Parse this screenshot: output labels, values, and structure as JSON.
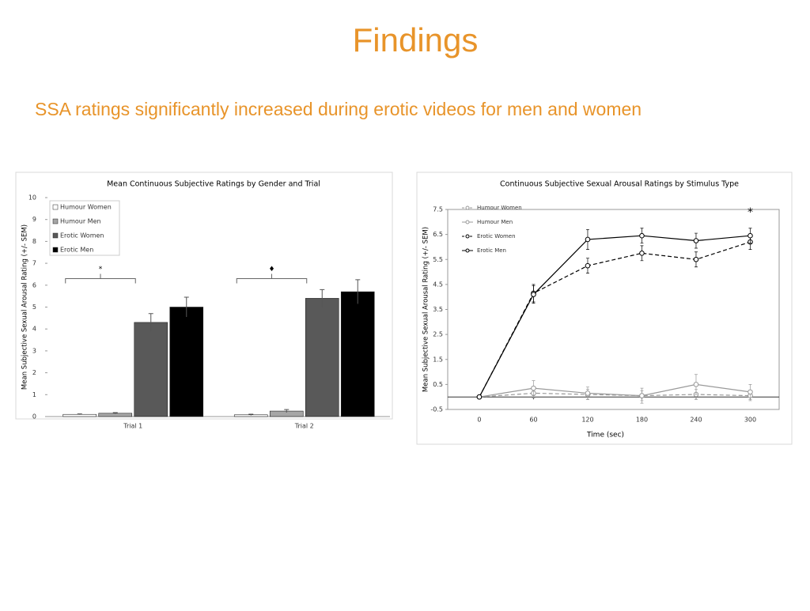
{
  "title": "Findings",
  "subtitle": "SSA ratings significantly increased during erotic videos for men and women",
  "chart_data": [
    {
      "type": "bar",
      "title": "Mean Continuous Subjective Ratings by Gender and Trial",
      "y_label": "Mean Subjective Sexual Arousal Rating (+/- SEM)",
      "categories": [
        "Trial 1",
        "Trial 2"
      ],
      "series": [
        {
          "name": "Humour Women",
          "color": "#ffffff",
          "values": [
            0.1,
            0.08
          ],
          "errors": [
            0.02,
            0.03
          ]
        },
        {
          "name": "Humour Men",
          "color": "#a6a6a6",
          "values": [
            0.15,
            0.25
          ],
          "errors": [
            0.03,
            0.07
          ]
        },
        {
          "name": "Erotic Women",
          "color": "#595959",
          "values": [
            4.3,
            5.4
          ],
          "errors": [
            0.4,
            0.4
          ]
        },
        {
          "name": "Erotic Men",
          "color": "#000000",
          "values": [
            5.0,
            5.7
          ],
          "errors": [
            0.45,
            0.55
          ]
        }
      ],
      "ylim": [
        0,
        10
      ],
      "yticks": [
        0,
        1,
        2,
        3,
        4,
        5,
        6,
        7,
        8,
        9,
        10
      ],
      "annotations": [
        "*",
        "♦"
      ],
      "legend": "upper-left"
    },
    {
      "type": "line",
      "title": "Continuous Subjective Sexual Arousal Ratings by Stimulus Type",
      "x_label": "Time (sec)",
      "y_label": "Mean Subjective Sexual Arousal Rating (+/- SEM)",
      "x": [
        0,
        60,
        120,
        180,
        240,
        300
      ],
      "series": [
        {
          "name": "Humour Women",
          "color": "#999999",
          "dashed": true,
          "values": [
            0,
            0.15,
            0.1,
            0.05,
            0.1,
            0.05
          ],
          "errors": [
            0.05,
            0.2,
            0.2,
            0.2,
            0.2,
            0.2
          ]
        },
        {
          "name": "Humour Men",
          "color": "#999999",
          "dashed": false,
          "values": [
            0,
            0.35,
            0.15,
            0.05,
            0.5,
            0.2
          ],
          "errors": [
            0.05,
            0.3,
            0.25,
            0.3,
            0.4,
            0.3
          ]
        },
        {
          "name": "Erotic Women",
          "color": "#000000",
          "dashed": true,
          "values": [
            0,
            4.15,
            5.25,
            5.75,
            5.5,
            6.2
          ],
          "errors": [
            0.05,
            0.35,
            0.3,
            0.3,
            0.3,
            0.3
          ]
        },
        {
          "name": "Erotic Men",
          "color": "#000000",
          "dashed": false,
          "values": [
            0,
            4.1,
            6.3,
            6.45,
            6.25,
            6.45
          ],
          "errors": [
            0.05,
            0.35,
            0.4,
            0.3,
            0.3,
            0.3
          ]
        }
      ],
      "xlim": [
        -35,
        332
      ],
      "xticks": [
        0,
        60,
        120,
        180,
        240,
        300
      ],
      "ylim": [
        -0.5,
        7.5
      ],
      "yticks": [
        -0.5,
        0.5,
        1.5,
        2.5,
        3.5,
        4.5,
        5.5,
        6.5,
        7.5
      ],
      "annotation": "*",
      "legend": "upper-left"
    }
  ]
}
